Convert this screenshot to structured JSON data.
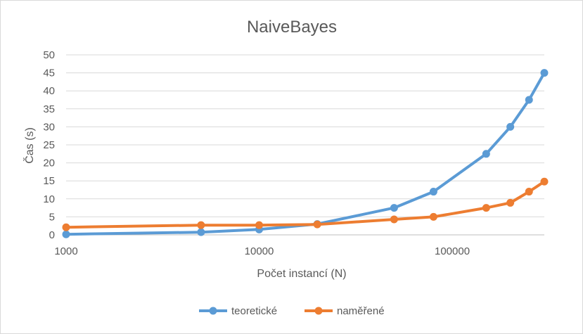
{
  "chart_data": {
    "type": "line",
    "title": "NaiveBayes",
    "xlabel": "Počet instancí (N)",
    "ylabel": "Čas (s)",
    "x_scale": "log",
    "xlim": [
      1000,
      300000
    ],
    "x_ticks": [
      1000,
      10000,
      100000
    ],
    "x_tick_labels": [
      "1000",
      "10000",
      "100000"
    ],
    "ylim": [
      0,
      50
    ],
    "y_ticks": [
      0,
      5,
      10,
      15,
      20,
      25,
      30,
      35,
      40,
      45,
      50
    ],
    "grid": "horizontal",
    "legend": "bottom",
    "series": [
      {
        "name": "teoretické",
        "color": "#5b9bd5",
        "x": [
          1000,
          5000,
          10000,
          20000,
          50000,
          80000,
          150000,
          200000,
          250000,
          300000
        ],
        "y": [
          0.15,
          0.75,
          1.5,
          3.0,
          7.5,
          12.0,
          22.5,
          30.0,
          37.5,
          45.0
        ]
      },
      {
        "name": "naměřené",
        "color": "#ed7d31",
        "x": [
          1000,
          5000,
          10000,
          20000,
          50000,
          80000,
          150000,
          200000,
          250000,
          300000
        ],
        "y": [
          2.1,
          2.7,
          2.7,
          2.9,
          4.3,
          5.0,
          7.5,
          8.9,
          12.0,
          14.8
        ]
      }
    ]
  }
}
